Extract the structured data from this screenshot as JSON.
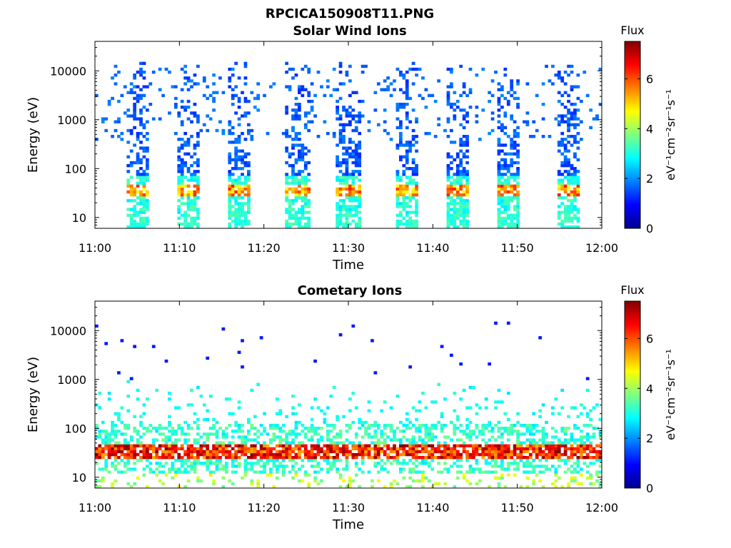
{
  "figure": {
    "title": "RPCICA150908T11.PNG"
  },
  "chart_data": [
    {
      "type": "heatmap",
      "title": "Solar Wind Ions",
      "xlabel": "Time",
      "ylabel": "Energy (eV)",
      "x_ticks": [
        "11:00",
        "11:10",
        "11:20",
        "11:30",
        "11:40",
        "11:50",
        "12:00"
      ],
      "xlim": [
        "11:00",
        "12:00"
      ],
      "y_scale": "log",
      "ylim": [
        6,
        40000
      ],
      "y_ticks": [
        {
          "value": 10,
          "label": "10"
        },
        {
          "value": 100,
          "label": "100"
        },
        {
          "value": 1000,
          "label": "1000"
        },
        {
          "value": 10000,
          "label": "10000"
        }
      ],
      "colorbar": {
        "label": "Flux",
        "unit": "eV⁻¹cm⁻²sr⁻¹s⁻¹",
        "range": [
          0,
          7.5
        ],
        "ticks": [
          "0",
          "2",
          "4",
          "6"
        ],
        "colormap": "jet"
      },
      "bursts_at": [
        "11:05",
        "11:11",
        "11:17",
        "11:24",
        "11:30",
        "11:37",
        "11:43",
        "11:49",
        "11:56"
      ],
      "peak_energy_eV": 35
    },
    {
      "type": "heatmap",
      "title": "Cometary Ions",
      "xlabel": "Time",
      "ylabel": "Energy (eV)",
      "x_ticks": [
        "11:00",
        "11:10",
        "11:20",
        "11:30",
        "11:40",
        "11:50",
        "12:00"
      ],
      "xlim": [
        "11:00",
        "12:00"
      ],
      "y_scale": "log",
      "ylim": [
        6,
        40000
      ],
      "y_ticks": [
        {
          "value": 10,
          "label": "10"
        },
        {
          "value": 100,
          "label": "100"
        },
        {
          "value": 1000,
          "label": "1000"
        },
        {
          "value": 10000,
          "label": "10000"
        }
      ],
      "colorbar": {
        "label": "Flux",
        "unit": "eV⁻¹cm⁻²sr⁻¹s⁻¹",
        "range": [
          0,
          7.5
        ],
        "ticks": [
          "0",
          "2",
          "4",
          "6"
        ],
        "colormap": "jet"
      },
      "peak_energy_eV": 32
    }
  ]
}
